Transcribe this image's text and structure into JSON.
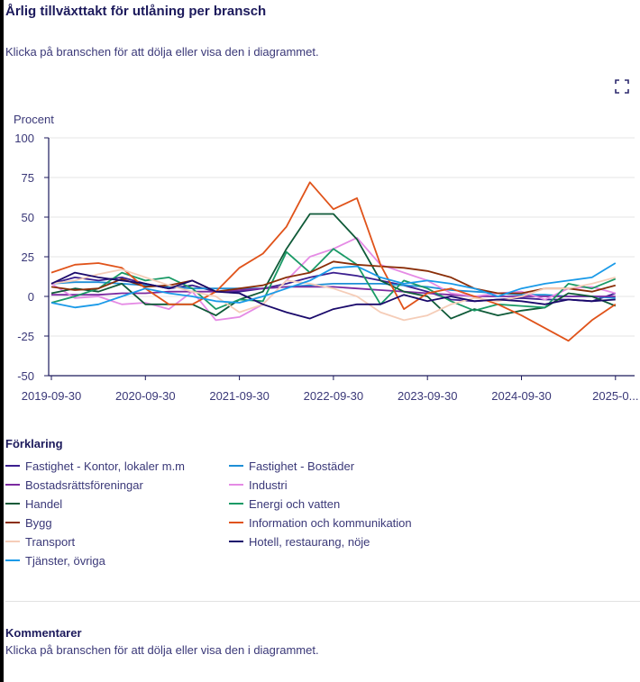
{
  "title": "Årlig tillväxttakt för utlåning per bransch",
  "subtitle": "Klicka på branschen för att dölja eller visa den i diagrammet.",
  "fullscreen_icon": "expand-icon",
  "legend_title": "Förklaring",
  "comments": {
    "title": "Kommentarer",
    "text": "Klicka på branschen för att dölja eller visa den i diagrammet."
  },
  "chart_data": {
    "type": "line",
    "ylabel": "Procent",
    "ylim": [
      -50,
      100
    ],
    "yticks": [
      100,
      75,
      50,
      25,
      0,
      -25,
      -50
    ],
    "xtick_labels": [
      "2019-09-30",
      "2020-09-30",
      "2021-09-30",
      "2022-09-30",
      "2023-09-30",
      "2024-09-30",
      "2025-0..."
    ],
    "x_frequency": "quarterly from 2019-09-30",
    "grid": true,
    "legend_placement": "bottom",
    "series": [
      {
        "name": "Fastighet - Kontor, lokaler m.m",
        "color": "#3b1f8f",
        "values": [
          8,
          12,
          10,
          12,
          8,
          5,
          7,
          3,
          3,
          5,
          8,
          12,
          15,
          13,
          10,
          7,
          3,
          -2,
          -3,
          -2,
          -1,
          -2,
          -2,
          -3,
          2
        ]
      },
      {
        "name": "Fastighet - Bostäder",
        "color": "#1f8fd6",
        "values": [
          8,
          9,
          9,
          8,
          7,
          6,
          5,
          5,
          5,
          5,
          6,
          7,
          8,
          8,
          8,
          7,
          6,
          4,
          3,
          2,
          1,
          1,
          0,
          0,
          -1
        ]
      },
      {
        "name": "Bostadsrättsföreningar",
        "color": "#7b2aa0",
        "values": [
          1,
          1,
          1,
          2,
          2,
          3,
          3,
          3,
          4,
          5,
          6,
          6,
          6,
          5,
          4,
          3,
          2,
          1,
          0,
          0,
          0,
          0,
          0,
          0,
          0
        ]
      },
      {
        "name": "Industri",
        "color": "#e58be5",
        "values": [
          8,
          -1,
          0,
          -5,
          -4,
          -8,
          3,
          -15,
          -13,
          -5,
          10,
          25,
          30,
          37,
          20,
          15,
          10,
          2,
          0,
          2,
          3,
          -2,
          5,
          6,
          2
        ]
      },
      {
        "name": "Handel",
        "color": "#0f5a38",
        "values": [
          2,
          5,
          3,
          8,
          -5,
          -5,
          -5,
          -12,
          -2,
          3,
          30,
          52,
          52,
          36,
          10,
          3,
          0,
          -14,
          -8,
          -12,
          -9,
          -7,
          2,
          0,
          -6
        ]
      },
      {
        "name": "Energi och vatten",
        "color": "#1a9a66",
        "values": [
          -4,
          0,
          5,
          15,
          10,
          12,
          5,
          -8,
          -2,
          -3,
          28,
          15,
          30,
          20,
          -5,
          10,
          5,
          -3,
          -9,
          -5,
          -6,
          -7,
          8,
          5,
          11
        ]
      },
      {
        "name": "Bygg",
        "color": "#8a2e08",
        "values": [
          6,
          4,
          5,
          11,
          6,
          7,
          10,
          3,
          5,
          7,
          12,
          15,
          22,
          20,
          19,
          18,
          16,
          12,
          5,
          2,
          2,
          5,
          5,
          3,
          7
        ]
      },
      {
        "name": "Information och kommunikation",
        "color": "#e0531a",
        "values": [
          15,
          20,
          21,
          18,
          5,
          -5,
          -5,
          3,
          18,
          27,
          44,
          72,
          55,
          62,
          20,
          -8,
          2,
          5,
          0,
          -5,
          -12,
          -20,
          -28,
          -15,
          -5
        ]
      },
      {
        "name": "Transport",
        "color": "#f5cdb8",
        "values": [
          8,
          10,
          14,
          17,
          12,
          7,
          3,
          0,
          -10,
          -5,
          10,
          8,
          5,
          0,
          -10,
          -15,
          -12,
          -5,
          -1,
          -3,
          0,
          5,
          5,
          8,
          12
        ]
      },
      {
        "name": "Hotell, restaurang, nöje",
        "color": "#1a0a6b",
        "values": [
          8,
          15,
          12,
          10,
          8,
          5,
          10,
          3,
          2,
          -5,
          -10,
          -14,
          -8,
          -5,
          -5,
          1,
          -3,
          0,
          -3,
          -2,
          -3,
          -5,
          -2,
          -3,
          -2
        ]
      },
      {
        "name": "Tjänster, övriga",
        "color": "#1a9ae8",
        "values": [
          -4,
          -7,
          -5,
          0,
          5,
          2,
          0,
          -3,
          -4,
          0,
          5,
          10,
          18,
          19,
          12,
          8,
          10,
          8,
          5,
          0,
          5,
          8,
          10,
          12,
          21
        ]
      }
    ]
  }
}
